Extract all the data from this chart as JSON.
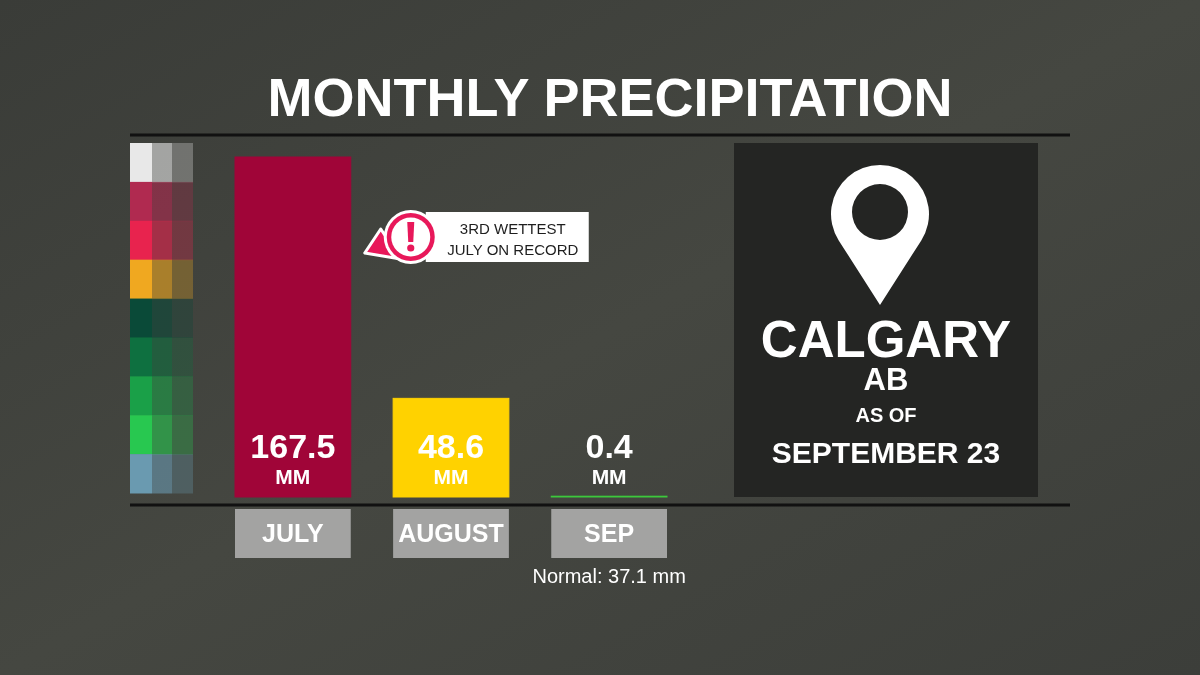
{
  "chart_data": [
    {
      "type": "bar",
      "title": "MONTHLY PRECIPITATION",
      "categories": [
        "JULY",
        "AUGUST",
        "SEP"
      ],
      "values": [
        167.5,
        48.6,
        0.4
      ],
      "colors": [
        "#a00538",
        "#ffd200",
        "#3cc83c"
      ],
      "value_labels": [
        "167.5 MM",
        "48.6 MM",
        "0.4 MM"
      ],
      "annotations": [
        "3RD WETTEST JULY ON RECORD",
        "Normal: 37.1 mm"
      ]
    },
    {
      "type": "other",
      "title": "CALGARY",
      "subtitle": "AB",
      "annotations": [
        "AS OF",
        "SEPTEMBER 23"
      ]
    }
  ]
}
